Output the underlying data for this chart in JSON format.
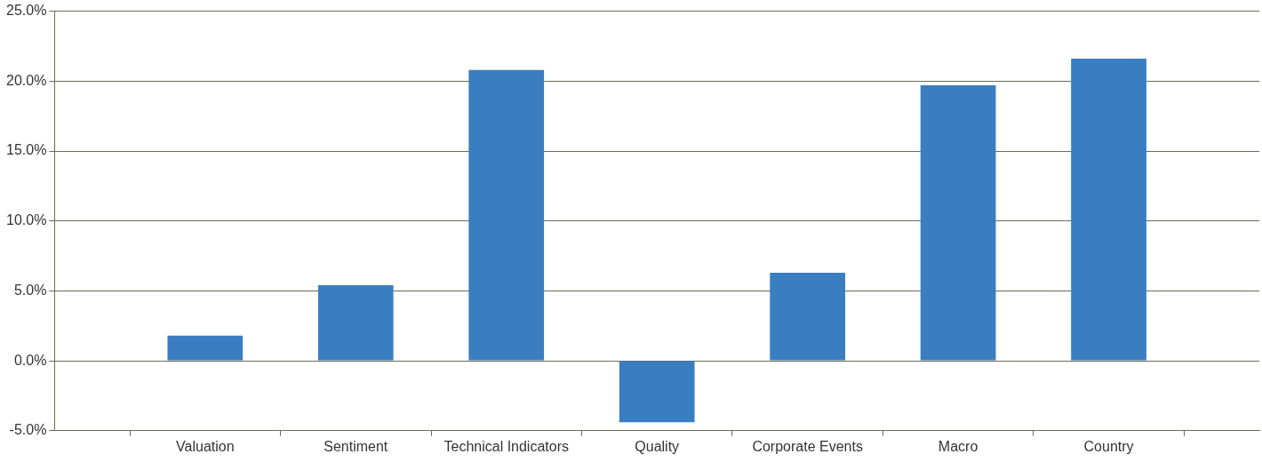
{
  "chart_data": {
    "type": "bar",
    "categories": [
      null,
      "Valuation",
      "Sentiment",
      "Technical Indicators",
      "Quality",
      "Corporate Events",
      "Macro",
      "Country",
      null
    ],
    "values": [
      null,
      1.8,
      5.4,
      20.8,
      -4.4,
      6.3,
      19.7,
      21.6,
      null
    ],
    "color": "#3a7ec2",
    "ylim": [
      -5,
      25
    ],
    "yticks": [
      {
        "value": -5,
        "label": "-5.0%"
      },
      {
        "value": 0,
        "label": "0.0%"
      },
      {
        "value": 5,
        "label": "5.0%"
      },
      {
        "value": 10,
        "label": "10.0%"
      },
      {
        "value": 15,
        "label": "15.0%"
      },
      {
        "value": 20,
        "label": "20.0%"
      },
      {
        "value": 25,
        "label": "25.0%"
      }
    ],
    "grid": "y",
    "legend": false
  }
}
